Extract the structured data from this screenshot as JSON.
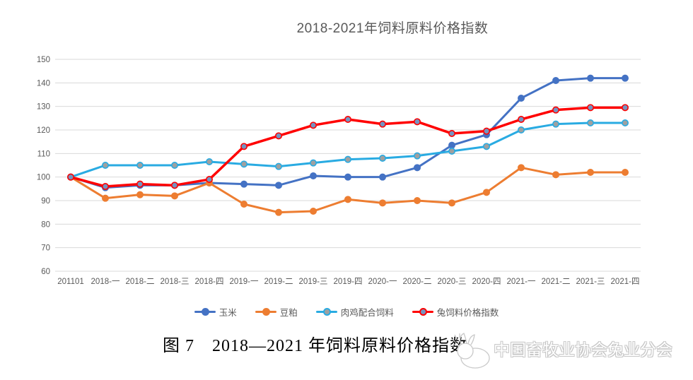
{
  "chart": {
    "title": "2018-2021年饲料原料价格指数",
    "caption": "图 7　2018—2021 年饲料原料价格指数",
    "watermark": "中国畜牧业协会兔业分会"
  },
  "chart_data": {
    "type": "line",
    "title": "2018-2021年饲料原料价格指数",
    "categories": [
      "201101",
      "2018-一",
      "2018-二",
      "2018-三",
      "2018-四",
      "2019-一",
      "2019-二",
      "2019-三",
      "2019-四",
      "2020-一",
      "2020-二",
      "2020-三",
      "2020-四",
      "2021-一",
      "2021-二",
      "2021-三",
      "2021-四"
    ],
    "series": [
      {
        "name": "玉米",
        "color": "#4472C4",
        "marker_fill": "#4472C4",
        "width": 3,
        "values": [
          100,
          95.5,
          96.5,
          96.5,
          97.5,
          97,
          96.5,
          100.5,
          100,
          100,
          104,
          113.5,
          118,
          133.5,
          141,
          142,
          142
        ]
      },
      {
        "name": "豆粕",
        "color": "#ED7D31",
        "marker_fill": "#ED7D31",
        "width": 3,
        "values": [
          100,
          91,
          92.5,
          92,
          97.5,
          88.5,
          85,
          85.5,
          90.5,
          89,
          90,
          89,
          93.5,
          104,
          101,
          102,
          102
        ]
      },
      {
        "name": "肉鸡配合饲料",
        "color": "#29ABE2",
        "marker_fill": "#9FA0A0",
        "width": 3,
        "values": [
          100,
          105,
          105,
          105,
          106.5,
          105.5,
          104.5,
          106,
          107.5,
          108,
          109,
          111,
          113,
          120,
          122.5,
          123,
          123
        ]
      },
      {
        "name": "兔饲料价格指数",
        "color": "#FF0000",
        "marker_fill": "#7593C0",
        "width": 3.5,
        "values": [
          100,
          96,
          97,
          96.5,
          99,
          113,
          117.5,
          122,
          124.5,
          122.5,
          123.5,
          118.5,
          119.5,
          124.5,
          128.5,
          129.5,
          129.5
        ]
      }
    ],
    "ylim": [
      60,
      150
    ],
    "ytick_step": 10,
    "grid": true,
    "grid_color": "#D9D9D9",
    "tick_color": "#595959",
    "legend_position": "bottom"
  }
}
